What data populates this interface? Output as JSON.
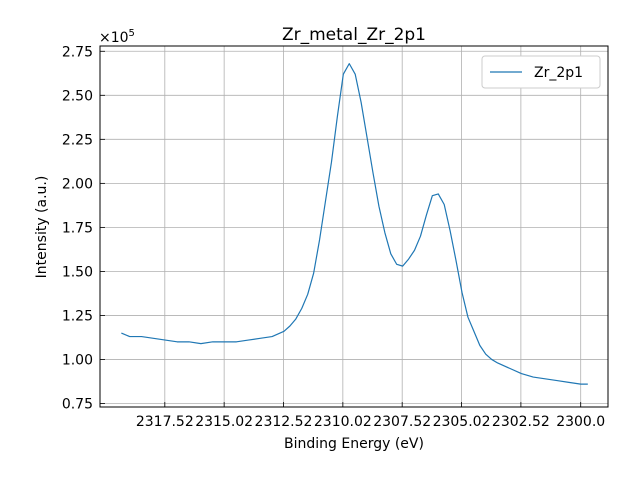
{
  "chart_data": {
    "type": "line",
    "title": "Zr_metal_Zr_2p1",
    "xlabel": "Binding Energy (eV)",
    "ylabel": "Intensity (a.u.)",
    "y_multiplier_label": "×10",
    "y_multiplier_exponent": "5",
    "y_scale_factor": 100000,
    "xlim": [
      2320.25,
      2298.85
    ],
    "ylim": [
      0.73,
      2.78
    ],
    "x_inverted": true,
    "grid": true,
    "legend_position": "upper right",
    "x_ticks": [
      {
        "value": 2317.52,
        "label": "2317.52"
      },
      {
        "value": 2315.02,
        "label": "2315.02"
      },
      {
        "value": 2312.52,
        "label": "2312.52"
      },
      {
        "value": 2310.02,
        "label": "2310.02"
      },
      {
        "value": 2307.52,
        "label": "2307.52"
      },
      {
        "value": 2305.02,
        "label": "2305.02"
      },
      {
        "value": 2302.52,
        "label": "2302.52"
      },
      {
        "value": 2300.0,
        "label": "2300.0"
      }
    ],
    "y_ticks": [
      {
        "value": 0.75,
        "label": "0.75"
      },
      {
        "value": 1.0,
        "label": "1.00"
      },
      {
        "value": 1.25,
        "label": "1.25"
      },
      {
        "value": 1.5,
        "label": "1.50"
      },
      {
        "value": 1.75,
        "label": "1.75"
      },
      {
        "value": 2.0,
        "label": "2.00"
      },
      {
        "value": 2.25,
        "label": "2.25"
      },
      {
        "value": 2.5,
        "label": "2.50"
      },
      {
        "value": 2.75,
        "label": "2.75"
      }
    ],
    "series": [
      {
        "name": "Zr_2p1",
        "color": "#1f77b4",
        "x": [
          2319.35,
          2319.0,
          2318.5,
          2318.0,
          2317.5,
          2317.0,
          2316.5,
          2316.0,
          2315.5,
          2315.0,
          2314.5,
          2314.0,
          2313.5,
          2313.0,
          2312.5,
          2312.25,
          2312.0,
          2311.75,
          2311.5,
          2311.25,
          2311.0,
          2310.75,
          2310.5,
          2310.25,
          2310.0,
          2309.75,
          2309.5,
          2309.25,
          2309.0,
          2308.75,
          2308.5,
          2308.25,
          2308.0,
          2307.75,
          2307.5,
          2307.25,
          2307.0,
          2306.75,
          2306.5,
          2306.25,
          2306.0,
          2305.75,
          2305.5,
          2305.25,
          2305.0,
          2304.75,
          2304.5,
          2304.25,
          2304.0,
          2303.75,
          2303.5,
          2303.0,
          2302.5,
          2302.0,
          2301.5,
          2301.0,
          2300.5,
          2300.0,
          2299.7
        ],
        "values": [
          1.15,
          1.13,
          1.13,
          1.12,
          1.11,
          1.1,
          1.1,
          1.09,
          1.1,
          1.1,
          1.1,
          1.11,
          1.12,
          1.13,
          1.16,
          1.19,
          1.23,
          1.29,
          1.37,
          1.49,
          1.68,
          1.9,
          2.12,
          2.38,
          2.62,
          2.68,
          2.62,
          2.46,
          2.26,
          2.06,
          1.87,
          1.72,
          1.6,
          1.54,
          1.53,
          1.57,
          1.62,
          1.7,
          1.82,
          1.93,
          1.94,
          1.88,
          1.73,
          1.56,
          1.38,
          1.24,
          1.16,
          1.08,
          1.03,
          1.0,
          0.98,
          0.95,
          0.92,
          0.9,
          0.89,
          0.88,
          0.87,
          0.86,
          0.86
        ]
      }
    ]
  }
}
